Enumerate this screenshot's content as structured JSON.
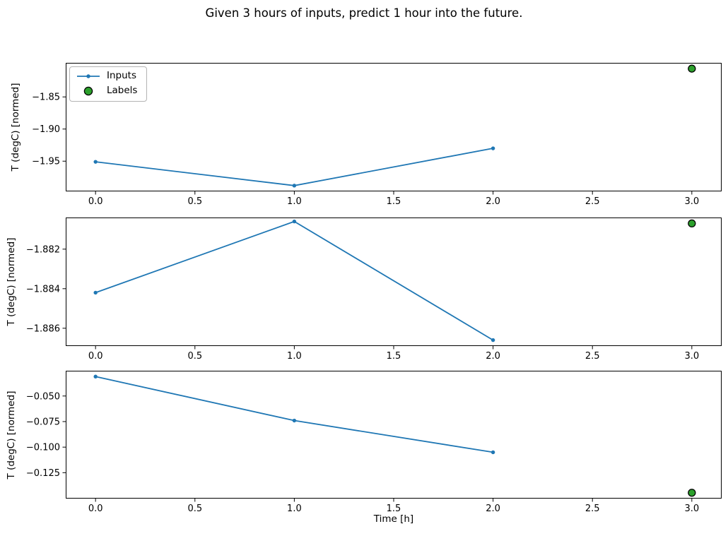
{
  "title": "Given 3 hours of inputs, predict 1 hour into the future.",
  "legend": {
    "inputs": "Inputs",
    "labels": "Labels"
  },
  "x_axis": {
    "label": "Time [h]"
  },
  "colors": {
    "inputs_line": "#1f77b4",
    "labels_fill": "#2ca02c",
    "labels_edge": "#000000",
    "frame": "#000000",
    "text": "#000000"
  },
  "chart_data": [
    {
      "type": "line",
      "ylabel": "T (degC) [normed]",
      "x": [
        0,
        1,
        2
      ],
      "series": [
        {
          "name": "Inputs",
          "values": [
            -1.951,
            -1.988,
            -1.93
          ]
        }
      ],
      "labels_point": {
        "name": "Labels",
        "x": 3,
        "y": -1.806
      },
      "yticks": [
        -1.85,
        -1.9,
        -1.95
      ],
      "ytick_labels": [
        "−1.85",
        "−1.90",
        "−1.95"
      ],
      "ylim": [
        -1.997,
        -1.797
      ],
      "xticks": [
        0.0,
        0.5,
        1.0,
        1.5,
        2.0,
        2.5,
        3.0
      ],
      "xtick_labels": [
        "0.0",
        "0.5",
        "1.0",
        "1.5",
        "2.0",
        "2.5",
        "3.0"
      ],
      "xlim": [
        -0.15,
        3.15
      ],
      "legend_visible": true,
      "grid": false,
      "legend_position": "upper-left"
    },
    {
      "type": "line",
      "ylabel": "T (degC) [normed]",
      "x": [
        0,
        1,
        2
      ],
      "series": [
        {
          "name": "Inputs",
          "values": [
            -1.8842,
            -1.8806,
            -1.8866
          ]
        }
      ],
      "labels_point": {
        "name": "Labels",
        "x": 3,
        "y": -1.8807
      },
      "yticks": [
        -1.882,
        -1.884,
        -1.886
      ],
      "ytick_labels": [
        "−1.882",
        "−1.884",
        "−1.886"
      ],
      "ylim": [
        -1.8869,
        -1.8804
      ],
      "xticks": [
        0.0,
        0.5,
        1.0,
        1.5,
        2.0,
        2.5,
        3.0
      ],
      "xtick_labels": [
        "0.0",
        "0.5",
        "1.0",
        "1.5",
        "2.0",
        "2.5",
        "3.0"
      ],
      "xlim": [
        -0.15,
        3.15
      ],
      "legend_visible": false,
      "grid": false
    },
    {
      "type": "line",
      "ylabel": "T (degC) [normed]",
      "xlabel": "Time [h]",
      "x": [
        0,
        1,
        2
      ],
      "series": [
        {
          "name": "Inputs",
          "values": [
            -0.031,
            -0.074,
            -0.105
          ]
        }
      ],
      "labels_point": {
        "name": "Labels",
        "x": 3,
        "y": -0.1446
      },
      "yticks": [
        -0.05,
        -0.075,
        -0.1,
        -0.125
      ],
      "ytick_labels": [
        "−0.050",
        "−0.075",
        "−0.100",
        "−0.125"
      ],
      "ylim": [
        -0.1503,
        -0.0253
      ],
      "xticks": [
        0.0,
        0.5,
        1.0,
        1.5,
        2.0,
        2.5,
        3.0
      ],
      "xtick_labels": [
        "0.0",
        "0.5",
        "1.0",
        "1.5",
        "2.0",
        "2.5",
        "3.0"
      ],
      "xlim": [
        -0.15,
        3.15
      ],
      "legend_visible": false,
      "grid": false
    }
  ]
}
